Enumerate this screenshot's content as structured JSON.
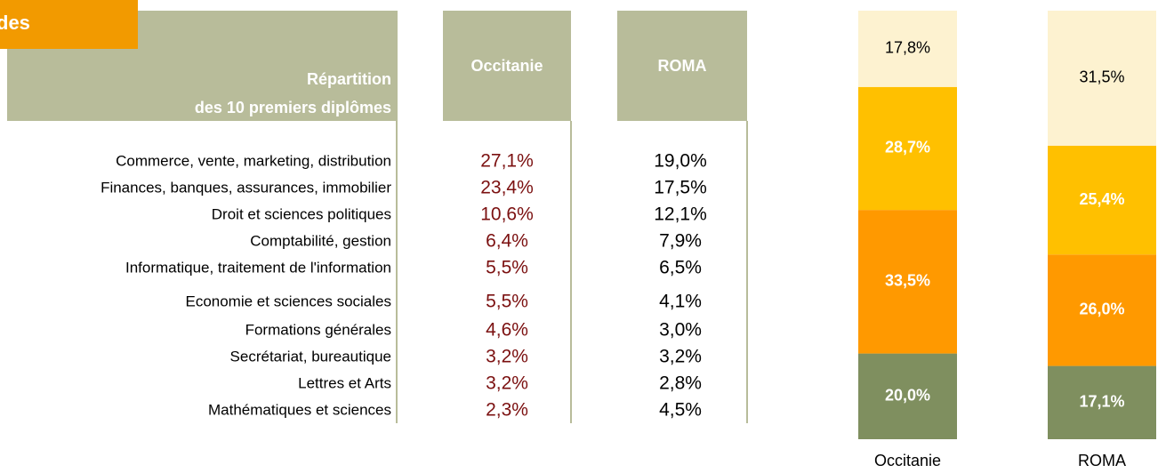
{
  "header": {
    "tag": "des"
  },
  "table": {
    "header_lines": [
      "Répartition",
      "des 10 premiers diplômes"
    ],
    "columns": [
      "Occitanie",
      "ROMA"
    ],
    "rows": [
      [
        "Commerce, vente, marketing, distribution",
        "27,1%",
        "19,0%"
      ],
      [
        "Finances, banques, assurances, immobilier",
        "23,4%",
        "17,5%"
      ],
      [
        "Droit et sciences politiques",
        "10,6%",
        "12,1%"
      ],
      [
        "Comptabilité, gestion",
        "6,4%",
        "7,9%"
      ],
      [
        "Informatique, traitement de l'information",
        "5,5%",
        "6,5%"
      ],
      [
        "Economie et sciences sociales",
        "5,5%",
        "4,1%"
      ],
      [
        "Formations générales",
        "4,6%",
        "3,0%"
      ],
      [
        "Secrétariat, bureautique",
        "3,2%",
        "3,2%"
      ],
      [
        "Lettres et Arts",
        "3,2%",
        "2,8%"
      ],
      [
        "Mathématiques et sciences",
        "2,3%",
        "4,5%"
      ]
    ]
  },
  "chart_data": {
    "type": "stacked_bar",
    "categories": [
      "Occitanie",
      "ROMA"
    ],
    "ylim": [
      0,
      100
    ],
    "series": [
      {
        "color": "#7f8f5f",
        "values": [
          20.0,
          17.1
        ],
        "value_labels": [
          "20,0%",
          "17,1%"
        ]
      },
      {
        "color": "#ff9900",
        "values": [
          33.5,
          26.0
        ],
        "value_labels": [
          "33,5%",
          "26,0%"
        ]
      },
      {
        "color": "#ffc000",
        "values": [
          28.7,
          25.4
        ],
        "value_labels": [
          "28,7%",
          "25,4%"
        ]
      },
      {
        "color": "#fdf2d0",
        "values": [
          17.8,
          31.5
        ],
        "value_labels": [
          "17,8%",
          "31,5%"
        ]
      }
    ]
  }
}
